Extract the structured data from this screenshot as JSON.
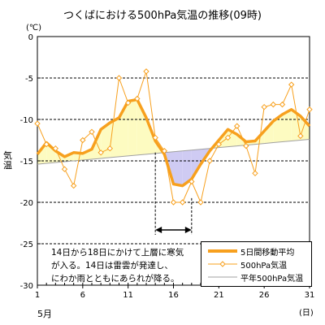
{
  "chart_data": {
    "type": "line",
    "title": "つくばにおける500hPa気温の推移(09時)",
    "unit_label": "(℃)",
    "ylabel": "気温",
    "xunit_label": "(日)",
    "month_label": "5月",
    "x_ticks": [
      1,
      6,
      11,
      16,
      21,
      26,
      31
    ],
    "y_ticks": [
      0,
      -5,
      -10,
      -15,
      -20,
      -25,
      -30
    ],
    "xlim": [
      1,
      31
    ],
    "ylim": [
      -30,
      0
    ],
    "grid": "horizontal dashed",
    "x": [
      1,
      2,
      3,
      4,
      5,
      6,
      7,
      8,
      9,
      10,
      11,
      12,
      13,
      14,
      15,
      16,
      17,
      18,
      19,
      20,
      21,
      22,
      23,
      24,
      25,
      26,
      27,
      28,
      29,
      30,
      31
    ],
    "series": [
      {
        "name": "5日間移動平均",
        "color": "#f7a01e",
        "values": [
          -14.2,
          -12.8,
          -13.8,
          -14.5,
          -14.0,
          -14.1,
          -13.6,
          -11.2,
          -10.4,
          -9.8,
          -7.8,
          -7.6,
          -9.8,
          -12.6,
          -14.2,
          -17.8,
          -18.0,
          -17.2,
          -15.4,
          -13.8,
          -12.5,
          -11.2,
          -11.8,
          -12.7,
          -12.6,
          -11.4,
          -10.2,
          -9.4,
          -8.8,
          -9.6,
          -10.8
        ]
      },
      {
        "name": "500hPa気温",
        "color": "#f7a01e",
        "values": [
          -10.5,
          -13.0,
          -13.5,
          -16.0,
          -18.0,
          -12.5,
          -11.5,
          -14.0,
          -13.5,
          -5.0,
          -8.0,
          -7.5,
          -4.2,
          -12.2,
          -13.8,
          -20.0,
          -20.0,
          -17.5,
          -20.0,
          -15.0,
          -13.0,
          -12.2,
          -10.8,
          -13.2,
          -16.5,
          -8.5,
          -8.2,
          -8.2,
          -5.8,
          -12.0,
          -8.8
        ]
      },
      {
        "name": "平年500hPa気温",
        "color": "#a0a0a0",
        "values": [
          -15.4,
          -15.3,
          -15.2,
          -15.1,
          -15.0,
          -14.9,
          -14.8,
          -14.7,
          -14.6,
          -14.5,
          -14.4,
          -14.3,
          -14.2,
          -14.1,
          -14.0,
          -13.9,
          -13.8,
          -13.7,
          -13.6,
          -13.5,
          -13.4,
          -13.3,
          -13.2,
          -13.1,
          -13.0,
          -12.9,
          -12.8,
          -12.7,
          -12.6,
          -12.5,
          -12.4
        ]
      }
    ],
    "fill_colors": {
      "above": "#fdfbc1",
      "below": "#cfcbf3"
    },
    "arrow_span": [
      14,
      18
    ],
    "annotation": "14日から18日にかけて上層に寒気\nが入る。14日は雷雲が発達し、\nにわか雨とともにあられが降る。",
    "legend_position": "bottom-right"
  }
}
